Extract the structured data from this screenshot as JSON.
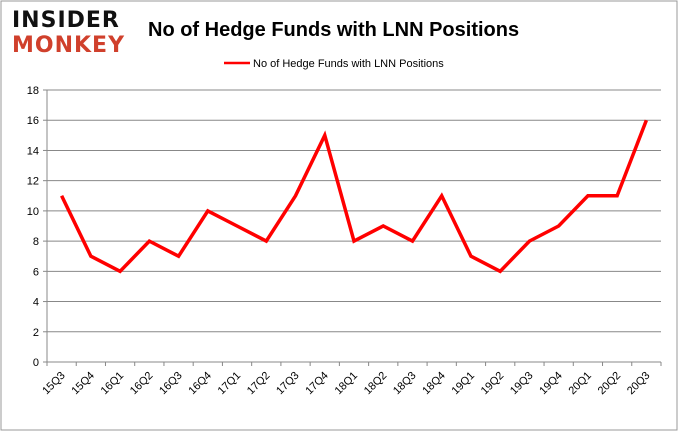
{
  "logo": {
    "line1": "INSIDER",
    "line2": "MONKEY"
  },
  "chart_data": {
    "type": "line",
    "title": "No of Hedge Funds with LNN Positions",
    "xlabel": "",
    "ylabel": "",
    "ylim": [
      0,
      18
    ],
    "yticks": [
      0,
      2,
      4,
      6,
      8,
      10,
      12,
      14,
      16,
      18
    ],
    "grid": true,
    "legend_position": "top-center",
    "categories": [
      "15Q3",
      "15Q4",
      "16Q1",
      "16Q2",
      "16Q3",
      "16Q4",
      "17Q1",
      "17Q2",
      "17Q3",
      "17Q4",
      "18Q1",
      "18Q2",
      "18Q3",
      "18Q4",
      "19Q1",
      "19Q2",
      "19Q3",
      "19Q4",
      "20Q1",
      "20Q2",
      "20Q3"
    ],
    "series": [
      {
        "name": "No of Hedge Funds with LNN Positions",
        "color": "#ff0000",
        "values": [
          11,
          7,
          6,
          8,
          7,
          10,
          9,
          8,
          11,
          15,
          8,
          9,
          8,
          11,
          7,
          6,
          8,
          9,
          11,
          11,
          16
        ]
      }
    ]
  }
}
